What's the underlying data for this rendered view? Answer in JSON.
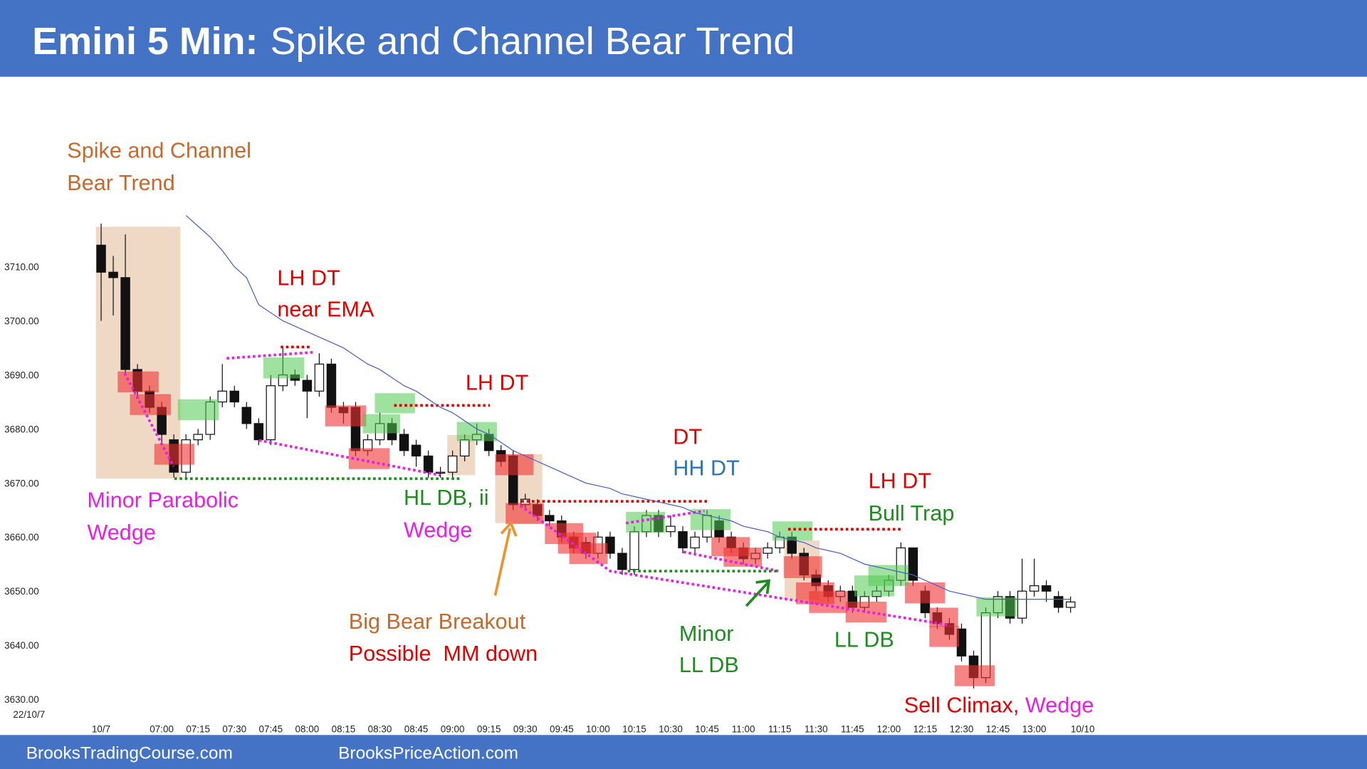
{
  "chart_data": {
    "type": "candlestick",
    "title": "Emini 5 Min:",
    "subtitle": "Spike and Channel Bear Trend",
    "date_label": "22/10/7",
    "footer": [
      "BrooksTradingCourse.com",
      "BrooksPriceAction.com"
    ],
    "categories": [
      "10/7",
      null,
      null,
      null,
      null,
      "07:00",
      null,
      null,
      "07:15",
      null,
      null,
      "07:30",
      null,
      null,
      "07:45",
      null,
      null,
      "08:00",
      null,
      null,
      "08:15",
      null,
      null,
      "08:30",
      null,
      null,
      "08:45",
      null,
      null,
      "09:00",
      null,
      null,
      "09:15",
      null,
      null,
      "09:30",
      null,
      null,
      "09:45",
      null,
      null,
      "10:00",
      null,
      null,
      "10:15",
      null,
      null,
      "10:30",
      null,
      null,
      "10:45",
      null,
      null,
      "11:00",
      null,
      null,
      "11:15",
      null,
      null,
      "11:30",
      null,
      null,
      "11:45",
      null,
      null,
      "12:00",
      null,
      null,
      "12:15",
      null,
      null,
      "12:30",
      null,
      null,
      "12:45",
      null,
      null,
      "13:00",
      null,
      null,
      null,
      "10/10"
    ],
    "open": [
      3714,
      3709,
      3708,
      3691,
      3687,
      3684,
      3678,
      3672,
      3678,
      3679,
      3685,
      3687,
      3684,
      3681,
      3678,
      3688,
      3690,
      3689,
      3687,
      3692,
      3684,
      3684,
      3676,
      3678,
      3681,
      3679,
      3677,
      3675,
      3672,
      3672,
      3675,
      3678,
      3679,
      3676,
      3675,
      3666,
      3666,
      3664,
      3663,
      3660,
      3659,
      3657,
      3660,
      3657,
      3654,
      3661,
      3664,
      3661,
      3661,
      3658,
      3660,
      3663,
      3660,
      3658,
      3656,
      3657,
      3658,
      3660,
      3657,
      3653,
      3651,
      3649,
      3650,
      3647,
      3649,
      3650,
      3652,
      3658,
      3650,
      3646,
      3644,
      3643,
      3638,
      3634,
      3646,
      3649,
      3645,
      3650,
      3651,
      3649,
      3647,
      null
    ],
    "high": [
      3718,
      3712,
      3716,
      3692,
      3688,
      3685,
      3679,
      3679,
      3680,
      3686,
      3692,
      3688,
      3685,
      3682,
      3690,
      3695,
      3691,
      3690,
      3694,
      3693,
      3685,
      3685,
      3679,
      3683,
      3682,
      3680,
      3678,
      3676,
      3673,
      3676,
      3679,
      3681,
      3680,
      3677,
      3676,
      3668,
      3667,
      3665,
      3664,
      3661,
      3660,
      3661,
      3661,
      3658,
      3662,
      3665,
      3665,
      3664,
      3662,
      3661,
      3665,
      3664,
      3661,
      3659,
      3658,
      3659,
      3661,
      3661,
      3658,
      3654,
      3652,
      3651,
      3651,
      3650,
      3651,
      3653,
      3659,
      3658,
      3651,
      3647,
      3645,
      3644,
      3639,
      3647,
      3650,
      3650,
      3656,
      3656,
      3652,
      3650,
      3649,
      null
    ],
    "low": [
      3700,
      3701,
      3690,
      3686,
      3683,
      3677,
      3671,
      3671,
      3677,
      3678,
      3684,
      3684,
      3680,
      3677,
      3677,
      3687,
      3688,
      3682,
      3686,
      3683,
      3681,
      3675,
      3675,
      3677,
      3677,
      3675,
      3673,
      3671,
      3671,
      3671,
      3674,
      3677,
      3675,
      3673,
      3665,
      3665,
      3663,
      3662,
      3659,
      3657,
      3656,
      3656,
      3656,
      3653,
      3653,
      3660,
      3660,
      3660,
      3657,
      3657,
      3659,
      3659,
      3657,
      3655,
      3655,
      3656,
      3657,
      3656,
      3652,
      3650,
      3648,
      3648,
      3646,
      3646,
      3648,
      3649,
      3651,
      3651,
      3645,
      3643,
      3641,
      3637,
      3632,
      3633,
      3645,
      3644,
      3644,
      3649,
      3648,
      3646,
      3646,
      null
    ],
    "close": [
      3709,
      3708,
      3691,
      3687,
      3684,
      3679,
      3672,
      3678,
      3679,
      3685,
      3687,
      3685,
      3681,
      3678,
      3688,
      3690,
      3689,
      3687,
      3692,
      3684,
      3683,
      3676,
      3678,
      3681,
      3678,
      3676,
      3675,
      3672,
      3672,
      3675,
      3678,
      3679,
      3676,
      3674,
      3666,
      3667,
      3664,
      3663,
      3660,
      3658,
      3657,
      3660,
      3657,
      3654,
      3661,
      3664,
      3661,
      3662,
      3658,
      3660,
      3664,
      3660,
      3658,
      3656,
      3657,
      3658,
      3660,
      3657,
      3653,
      3651,
      3649,
      3650,
      3647,
      3649,
      3650,
      3652,
      3658,
      3652,
      3646,
      3644,
      3642,
      3638,
      3634,
      3646,
      3649,
      3645,
      3650,
      3651,
      3650,
      3647,
      3648,
      null
    ],
    "ema": [
      null,
      null,
      null,
      null,
      null,
      null,
      null,
      3719.5,
      3717.5,
      3715.5,
      3713,
      3710,
      3708,
      3703,
      3701.5,
      3700,
      3699,
      3698,
      3697,
      3696,
      3695,
      3693.5,
      3692,
      3691,
      3689.5,
      3688,
      3687,
      3685.5,
      3684,
      3683,
      3681.5,
      3680,
      3679,
      3677.5,
      3676,
      3675,
      3674,
      3673,
      3672,
      3671,
      3670,
      3669.5,
      3669,
      3668,
      3667.5,
      3667,
      3666.5,
      3666,
      3665.5,
      3664.5,
      3664,
      3663.5,
      3663,
      3662,
      3661.5,
      3661,
      3660,
      3659.5,
      3659,
      3658,
      3657.5,
      3657,
      3656,
      3655,
      3654.5,
      3654,
      3653.5,
      3653,
      3652,
      3651,
      3650,
      3649.5,
      3649,
      3648.5,
      3648.5,
      3648.5,
      3648.5,
      3648.5,
      3648.5,
      3648.5,
      3648.5,
      null
    ],
    "ema_color": "#4a5fc1",
    "bull_color": "#ffffff",
    "bear_color": "#111111",
    "ylim": [
      3626,
      3743
    ],
    "yticks": [
      {
        "value": 3630,
        "label": "3630.00"
      },
      {
        "value": 3640,
        "label": "3640.00"
      },
      {
        "value": 3650,
        "label": "3650.00"
      },
      {
        "value": 3660,
        "label": "3660.00"
      },
      {
        "value": 3670,
        "label": "3670.00"
      },
      {
        "value": 3680,
        "label": "3680.00"
      },
      {
        "value": 3690,
        "label": "3690.00"
      },
      {
        "value": 3700,
        "label": "3700.00"
      },
      {
        "value": 3710,
        "label": "3710.00"
      }
    ],
    "annotations": [
      {
        "text": "Spike and Channel",
        "color": "#c5692c"
      },
      {
        "text": "Bear Trend",
        "color": "#c5692c"
      },
      {
        "text": "LH DT",
        "color": "#e00000"
      },
      {
        "text": "near EMA",
        "color": "#e00000"
      },
      {
        "text": "LH DT",
        "color": "#e00000"
      },
      {
        "text": "Minor Parabolic",
        "color": "#e61ee6"
      },
      {
        "text": "Wedge",
        "color": "#e61ee6"
      },
      {
        "text": "HL DB, ii",
        "color": "#1e8c1e"
      },
      {
        "text": "Wedge",
        "color": "#e61ee6"
      },
      {
        "text": "DT",
        "color": "#e00000"
      },
      {
        "text": "HH DT",
        "color": "#2e75b6"
      },
      {
        "text": "LH DT",
        "color": "#e00000"
      },
      {
        "text": "Bull Trap",
        "color": "#1e8c1e"
      },
      {
        "text": "Big Bear Breakout",
        "color": "#c5692c"
      },
      {
        "text": "Possible  MM down",
        "color": "#e00000"
      },
      {
        "text": "Minor",
        "color": "#1e8c1e"
      },
      {
        "text": "LL DB",
        "color": "#1e8c1e"
      },
      {
        "text": "LL DB",
        "color": "#1e8c1e"
      },
      {
        "text": "Sell Climax,",
        "color": "#e00000"
      },
      {
        "text": "Wedge",
        "color": "#e61ee6"
      }
    ]
  }
}
